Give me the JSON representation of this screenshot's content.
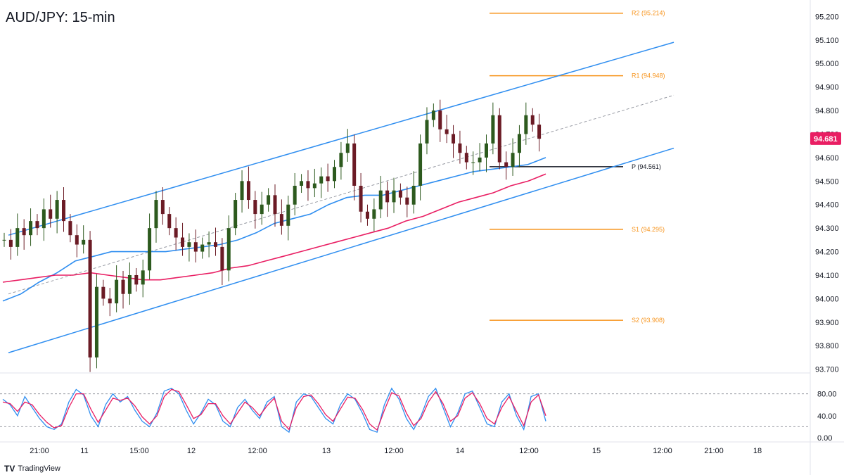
{
  "header": {
    "title": "AUD/JPY: 15-min"
  },
  "brand": {
    "name": "TradingView",
    "logo": "TV"
  },
  "colors": {
    "channel": "#2f8ef0",
    "resistance_support": "#f7931a",
    "pivot": "#131722",
    "ma_fast": "#2f8ef0",
    "ma_slow": "#e91e63",
    "candle_up": "#2d5a1e",
    "candle_down": "#6b1b25",
    "price_badge": "#e91e63",
    "stoch_k": "#2f8ef0",
    "stoch_d": "#e91e63"
  },
  "chart_data": {
    "type": "candlestick",
    "title": "AUD/JPY: 15-min",
    "price_axis": {
      "ticks": [
        "95.200",
        "95.100",
        "95.000",
        "94.900",
        "94.800",
        "94.700",
        "94.600",
        "94.500",
        "94.400",
        "94.300",
        "94.200",
        "94.100",
        "94.000",
        "93.900",
        "93.800",
        "93.700"
      ],
      "current_price": "94.681",
      "ylim": [
        93.69,
        95.27
      ]
    },
    "time_axis": {
      "ticks": [
        "21:00",
        "11",
        "15:00",
        "12",
        "12:00",
        "13",
        "12:00",
        "14",
        "12:00",
        "15",
        "12:00",
        "21:00",
        "18"
      ]
    },
    "levels": [
      {
        "label": "R2 (95.214)",
        "value": 95.214,
        "kind": "resistance"
      },
      {
        "label": "R1 (94.948)",
        "value": 94.948,
        "kind": "resistance"
      },
      {
        "label": "P (94.561)",
        "value": 94.561,
        "kind": "pivot"
      },
      {
        "label": "S1 (94.295)",
        "value": 94.295,
        "kind": "support"
      },
      {
        "label": "S2 (93.908)",
        "value": 93.908,
        "kind": "support"
      }
    ],
    "ascending_channel": {
      "upper": [
        [
          0,
          94.27
        ],
        [
          96,
          95.09
        ]
      ],
      "lower": [
        [
          0,
          93.77
        ],
        [
          96,
          94.64
        ]
      ],
      "mid": [
        [
          0,
          94.02
        ],
        [
          96,
          94.865
        ]
      ]
    },
    "series_price": [
      94.25,
      94.22,
      94.3,
      94.27,
      94.33,
      94.3,
      94.38,
      94.34,
      94.42,
      94.33,
      94.27,
      94.23,
      94.25,
      93.75,
      94.05,
      94.0,
      93.98,
      94.08,
      94.02,
      94.1,
      94.06,
      94.12,
      94.3,
      94.42,
      94.36,
      94.3,
      94.26,
      94.22,
      94.24,
      94.2,
      94.23,
      94.24,
      94.22,
      94.12,
      94.3,
      94.42,
      94.5,
      94.42,
      94.36,
      94.4,
      94.44,
      94.36,
      94.31,
      94.4,
      94.48,
      94.5,
      94.47,
      94.49,
      94.52,
      94.5,
      94.56,
      94.62,
      94.66,
      94.48,
      94.37,
      94.34,
      94.38,
      94.46,
      94.41,
      94.46,
      94.43,
      94.4,
      94.48,
      94.66,
      94.76,
      94.8,
      94.72,
      94.7,
      94.66,
      94.62,
      94.58,
      94.58,
      94.6,
      94.66,
      94.78,
      94.58,
      94.56,
      94.62,
      94.7,
      94.78,
      94.74,
      94.68
    ],
    "ma_fast": [
      93.99,
      94.02,
      94.07,
      94.11,
      94.16,
      94.18,
      94.2,
      94.2,
      94.2,
      94.2,
      94.21,
      94.22,
      94.23,
      94.25,
      94.28,
      94.32,
      94.34,
      94.36,
      94.4,
      94.43,
      94.44,
      94.44,
      94.46,
      94.48,
      94.5,
      94.52,
      94.54,
      94.55,
      94.56,
      94.57,
      94.6
    ],
    "ma_slow": [
      94.07,
      94.08,
      94.09,
      94.1,
      94.1,
      94.11,
      94.1,
      94.09,
      94.08,
      94.08,
      94.09,
      94.1,
      94.11,
      94.13,
      94.14,
      94.16,
      94.18,
      94.2,
      94.22,
      94.24,
      94.26,
      94.28,
      94.3,
      94.33,
      94.35,
      94.38,
      94.41,
      94.43,
      94.45,
      94.48,
      94.5,
      94.53
    ],
    "stochastic": {
      "ticks": [
        "80.00",
        "40.00",
        "0.00"
      ],
      "upper_band": 80,
      "lower_band": 20,
      "ylim": [
        0,
        100
      ],
      "k": [
        70,
        60,
        40,
        75,
        55,
        35,
        20,
        15,
        25,
        65,
        88,
        78,
        40,
        20,
        60,
        80,
        65,
        75,
        50,
        30,
        20,
        45,
        85,
        90,
        80,
        50,
        25,
        45,
        70,
        60,
        30,
        20,
        55,
        70,
        50,
        35,
        65,
        75,
        20,
        10,
        65,
        80,
        75,
        55,
        35,
        25,
        60,
        80,
        70,
        45,
        15,
        10,
        60,
        90,
        70,
        35,
        15,
        40,
        75,
        90,
        55,
        20,
        45,
        80,
        85,
        55,
        25,
        20,
        65,
        80,
        40,
        15,
        75,
        80,
        30
      ],
      "d": [
        65,
        62,
        48,
        65,
        60,
        42,
        28,
        18,
        22,
        55,
        80,
        80,
        52,
        28,
        50,
        72,
        68,
        72,
        58,
        38,
        25,
        40,
        75,
        88,
        84,
        60,
        35,
        42,
        62,
        62,
        40,
        25,
        45,
        65,
        55,
        40,
        58,
        72,
        30,
        15,
        55,
        75,
        78,
        62,
        42,
        30,
        52,
        74,
        72,
        52,
        25,
        14,
        50,
        82,
        76,
        45,
        22,
        35,
        65,
        84,
        62,
        30,
        40,
        72,
        82,
        62,
        35,
        25,
        55,
        75,
        48,
        22,
        65,
        78,
        40
      ]
    }
  }
}
